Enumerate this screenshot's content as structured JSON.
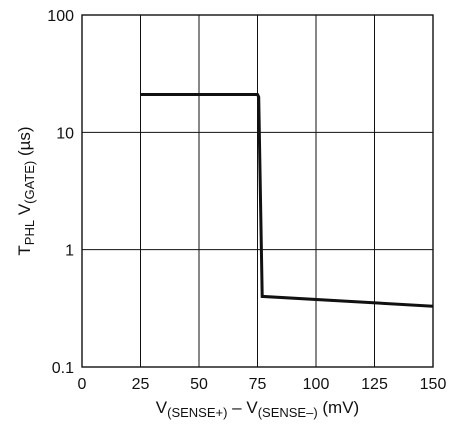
{
  "chart_data": {
    "type": "line",
    "title": "",
    "xlabel": {
      "parts": [
        {
          "text": "V",
          "sub": false
        },
        {
          "text": "(SENSE+)",
          "sub": true
        },
        {
          "text": " – V",
          "sub": false
        },
        {
          "text": "(SENSE–)",
          "sub": true
        },
        {
          "text": " (mV)",
          "sub": false
        }
      ]
    },
    "ylabel": {
      "parts": [
        {
          "text": "T",
          "sub": false
        },
        {
          "text": "PHL",
          "sub": true
        },
        {
          "text": " V",
          "sub": false
        },
        {
          "text": "(GATE)",
          "sub": true
        },
        {
          "text": " (µs)",
          "sub": false
        }
      ]
    },
    "xlim": [
      0,
      150
    ],
    "ylim": [
      0.1,
      100
    ],
    "yscale": "log",
    "grid": true,
    "x_ticks": [
      0,
      25,
      50,
      75,
      100,
      125,
      150
    ],
    "x_tick_labels": [
      "0",
      "25",
      "50",
      "75",
      "100",
      "125",
      "150"
    ],
    "y_ticks": [
      0.1,
      1,
      10,
      100
    ],
    "y_tick_labels": [
      "0.1",
      "1",
      "10",
      "100"
    ],
    "series": [
      {
        "x": [
          25,
          75,
          75.5,
          77,
          150
        ],
        "y": [
          21,
          21,
          20,
          0.4,
          0.33
        ]
      }
    ]
  }
}
